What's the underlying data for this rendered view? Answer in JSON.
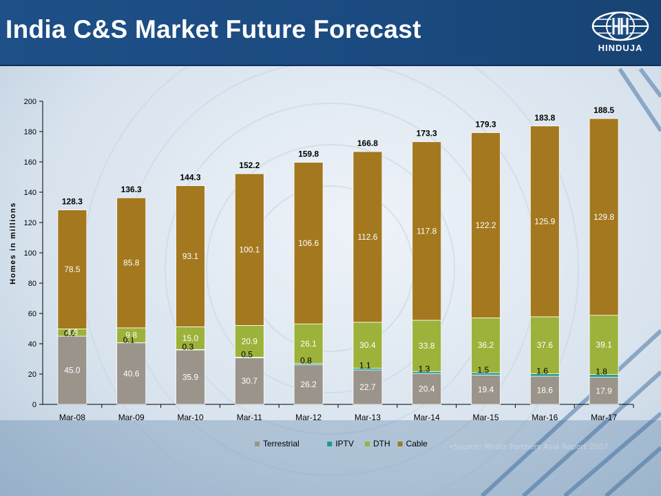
{
  "header": {
    "title": "India C&S Market Future Forecast",
    "logo_text": "HINDUJA"
  },
  "source_note": "•Source: Media Partners Asia Report 2007",
  "colors": {
    "header_bg": "#1e4f86",
    "terrestrial": "#9a948b",
    "iptv": "#1f9a8a",
    "dth": "#9cb23a",
    "cable": "#a3781f"
  },
  "chart_data": {
    "type": "bar",
    "stacked": true,
    "categories": [
      "Mar-08",
      "Mar-09",
      "Mar-10",
      "Mar-11",
      "Mar-12",
      "Mar-13",
      "Mar-14",
      "Mar-15",
      "Mar-16",
      "Mar-17"
    ],
    "series": [
      {
        "name": "Terrestrial",
        "color": "#9a948b",
        "values": [
          45.0,
          40.6,
          35.9,
          30.7,
          26.2,
          22.7,
          20.4,
          19.4,
          18.6,
          17.9
        ],
        "labels": [
          "45.0",
          "40.6",
          "35.9",
          "30.7",
          "26.2",
          "22.7",
          "20.4",
          "19.4",
          "18.6",
          "17.9"
        ]
      },
      {
        "name": "IPTV",
        "color": "#1f9a8a",
        "values": [
          0.0,
          0.1,
          0.3,
          0.5,
          0.8,
          1.1,
          1.3,
          1.5,
          1.6,
          1.8
        ],
        "labels": [
          "0.0",
          "0.1",
          "0.3",
          "0.5",
          "0.8",
          "1.1",
          "1.3",
          "1.5",
          "1.6",
          "1.8"
        ]
      },
      {
        "name": "DTH",
        "color": "#9cb23a",
        "values": [
          4.8,
          9.8,
          15.0,
          20.9,
          26.1,
          30.4,
          33.8,
          36.2,
          37.6,
          39.1
        ],
        "labels": [
          "4.8",
          "9.8",
          "15.0",
          "20.9",
          "26.1",
          "30.4",
          "33.8",
          "36.2",
          "37.6",
          "39.1"
        ]
      },
      {
        "name": "Cable",
        "color": "#a3781f",
        "values": [
          78.5,
          85.8,
          93.1,
          100.1,
          106.6,
          112.6,
          117.8,
          122.2,
          125.9,
          129.8
        ],
        "labels": [
          "78.5",
          "85.8",
          "93.1",
          "100.1",
          "106.6",
          "112.6",
          "117.8",
          "122.2",
          "125.9",
          "129.8"
        ]
      }
    ],
    "totals": [
      "128.3",
      "136.3",
      "144.3",
      "152.2",
      "159.8",
      "166.8",
      "173.3",
      "179.3",
      "183.8",
      "188.5"
    ],
    "ylabel": "Homes in millions",
    "ylim": [
      0,
      200
    ],
    "yticks": [
      "0",
      "20",
      "40",
      "60",
      "80",
      "100",
      "120",
      "140",
      "160",
      "180",
      "200"
    ],
    "legend": "bottom"
  }
}
